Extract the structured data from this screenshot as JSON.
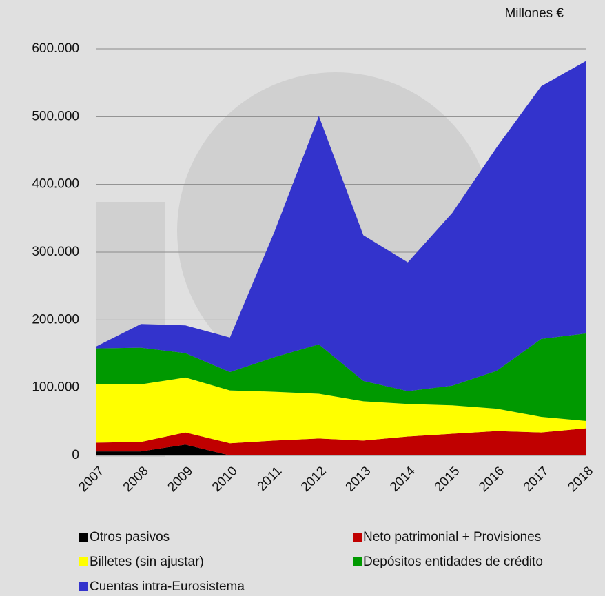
{
  "chart_data": {
    "type": "stacked_area",
    "unit_label": "Millones €",
    "categories": [
      "2007",
      "2008",
      "2009",
      "2010",
      "2011",
      "2012",
      "2013",
      "2014",
      "2015",
      "2016",
      "2017",
      "2018"
    ],
    "series": [
      {
        "name": "Otros pasivos",
        "color": "#000000",
        "values": [
          6000,
          6000,
          16000,
          0,
          0,
          0,
          0,
          0,
          0,
          0,
          0,
          0
        ]
      },
      {
        "name": "Neto patrimonial + Provisiones",
        "color": "#c00000",
        "values": [
          13000,
          14000,
          18000,
          18000,
          22000,
          25000,
          22000,
          28000,
          32000,
          36000,
          34000,
          40000
        ]
      },
      {
        "name": "Billetes (sin ajustar)",
        "color": "#ffff00",
        "values": [
          86000,
          85000,
          81000,
          78000,
          72000,
          66000,
          58000,
          48000,
          42000,
          33000,
          23000,
          11000
        ]
      },
      {
        "name": "Depósitos entidades de crédito",
        "color": "#009900",
        "values": [
          53000,
          54000,
          36000,
          27000,
          51000,
          73000,
          30000,
          19000,
          29000,
          56000,
          115000,
          129000
        ]
      },
      {
        "name": "Cuentas intra-Eurosistema",
        "color": "#3333cc",
        "values": [
          3000,
          35000,
          41000,
          51000,
          185000,
          337000,
          215000,
          190000,
          255000,
          330000,
          373000,
          402000
        ]
      }
    ],
    "ylim": [
      0,
      600000
    ],
    "yticks": [
      0,
      {
        "value": 100000,
        "label": "100.000"
      },
      {
        "value": 200000,
        "label": "200.000"
      },
      {
        "value": 300000,
        "label": "300.000"
      },
      {
        "value": 400000,
        "label": "400.000"
      },
      {
        "value": 500000,
        "label": "500.000"
      },
      {
        "value": 600000,
        "label": "600.000"
      }
    ],
    "grid": true
  }
}
